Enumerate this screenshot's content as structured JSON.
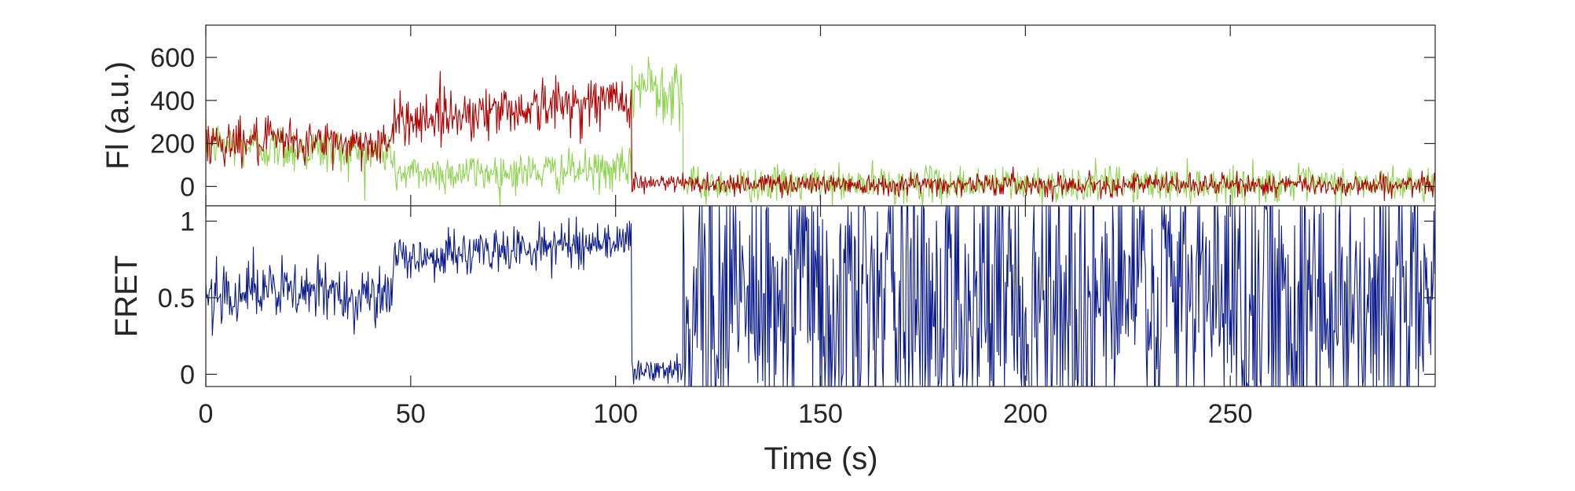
{
  "chart_data": [
    {
      "type": "line",
      "title": "",
      "xlabel": "",
      "ylabel": "Fl (a.u.)",
      "xlim": [
        0,
        300
      ],
      "ylim": [
        -90,
        750
      ],
      "x_ticks": [
        0,
        50,
        100,
        150,
        200,
        250
      ],
      "y_ticks": [
        0,
        200,
        400,
        600
      ],
      "y_tick_labels": [
        "0",
        "200",
        "400",
        "600"
      ],
      "grid": false,
      "legend": "none",
      "colors": {
        "green": "#8ed44f",
        "red": "#b00000"
      },
      "series": [
        {
          "color": "#8ed44f",
          "segments": [
            {
              "from": 0,
              "to": 46,
              "mean_start": 200,
              "mean_end": 150,
              "noise": 55
            },
            {
              "from": 46,
              "to": 104,
              "mean_start": 60,
              "mean_end": 75,
              "noise": 45
            },
            {
              "from": 104,
              "to": 116.5,
              "mean_start": 470,
              "mean_end": 470,
              "noise": 85
            },
            {
              "from": 116.5,
              "to": 300,
              "mean_start": 10,
              "mean_end": 10,
              "noise": 40
            }
          ]
        },
        {
          "color": "#b00000",
          "segments": [
            {
              "from": 0,
              "to": 46,
              "mean_start": 210,
              "mean_end": 200,
              "noise": 50
            },
            {
              "from": 46,
              "to": 104,
              "mean_start": 310,
              "mean_end": 410,
              "noise": 60
            },
            {
              "from": 104,
              "to": 300,
              "mean_start": 15,
              "mean_end": 5,
              "noise": 25
            }
          ]
        }
      ]
    },
    {
      "type": "line",
      "title": "",
      "xlabel": "Time (s)",
      "ylabel": "FRET",
      "xlim": [
        0,
        300
      ],
      "ylim": [
        -0.08,
        1.1
      ],
      "x_ticks": [
        0,
        50,
        100,
        150,
        200,
        250
      ],
      "x_tick_labels": [
        "0",
        "50",
        "100",
        "150",
        "200",
        "250"
      ],
      "y_ticks": [
        0,
        0.5,
        1
      ],
      "y_tick_labels": [
        "0",
        "0.5",
        "1"
      ],
      "grid": false,
      "legend": "none",
      "series": [
        {
          "color": "#0b1a8c",
          "segments": [
            {
              "from": 0,
              "to": 46,
              "mean_start": 0.55,
              "mean_end": 0.52,
              "noise": 0.1
            },
            {
              "from": 46,
              "to": 104,
              "mean_start": 0.75,
              "mean_end": 0.88,
              "noise": 0.07
            },
            {
              "from": 104,
              "to": 116.5,
              "mean_start": 0.02,
              "mean_end": 0.02,
              "noise": 0.04
            },
            {
              "from": 116.5,
              "to": 300,
              "mean_start": 0.5,
              "mean_end": 0.5,
              "noise": 0.55
            }
          ]
        }
      ]
    }
  ]
}
